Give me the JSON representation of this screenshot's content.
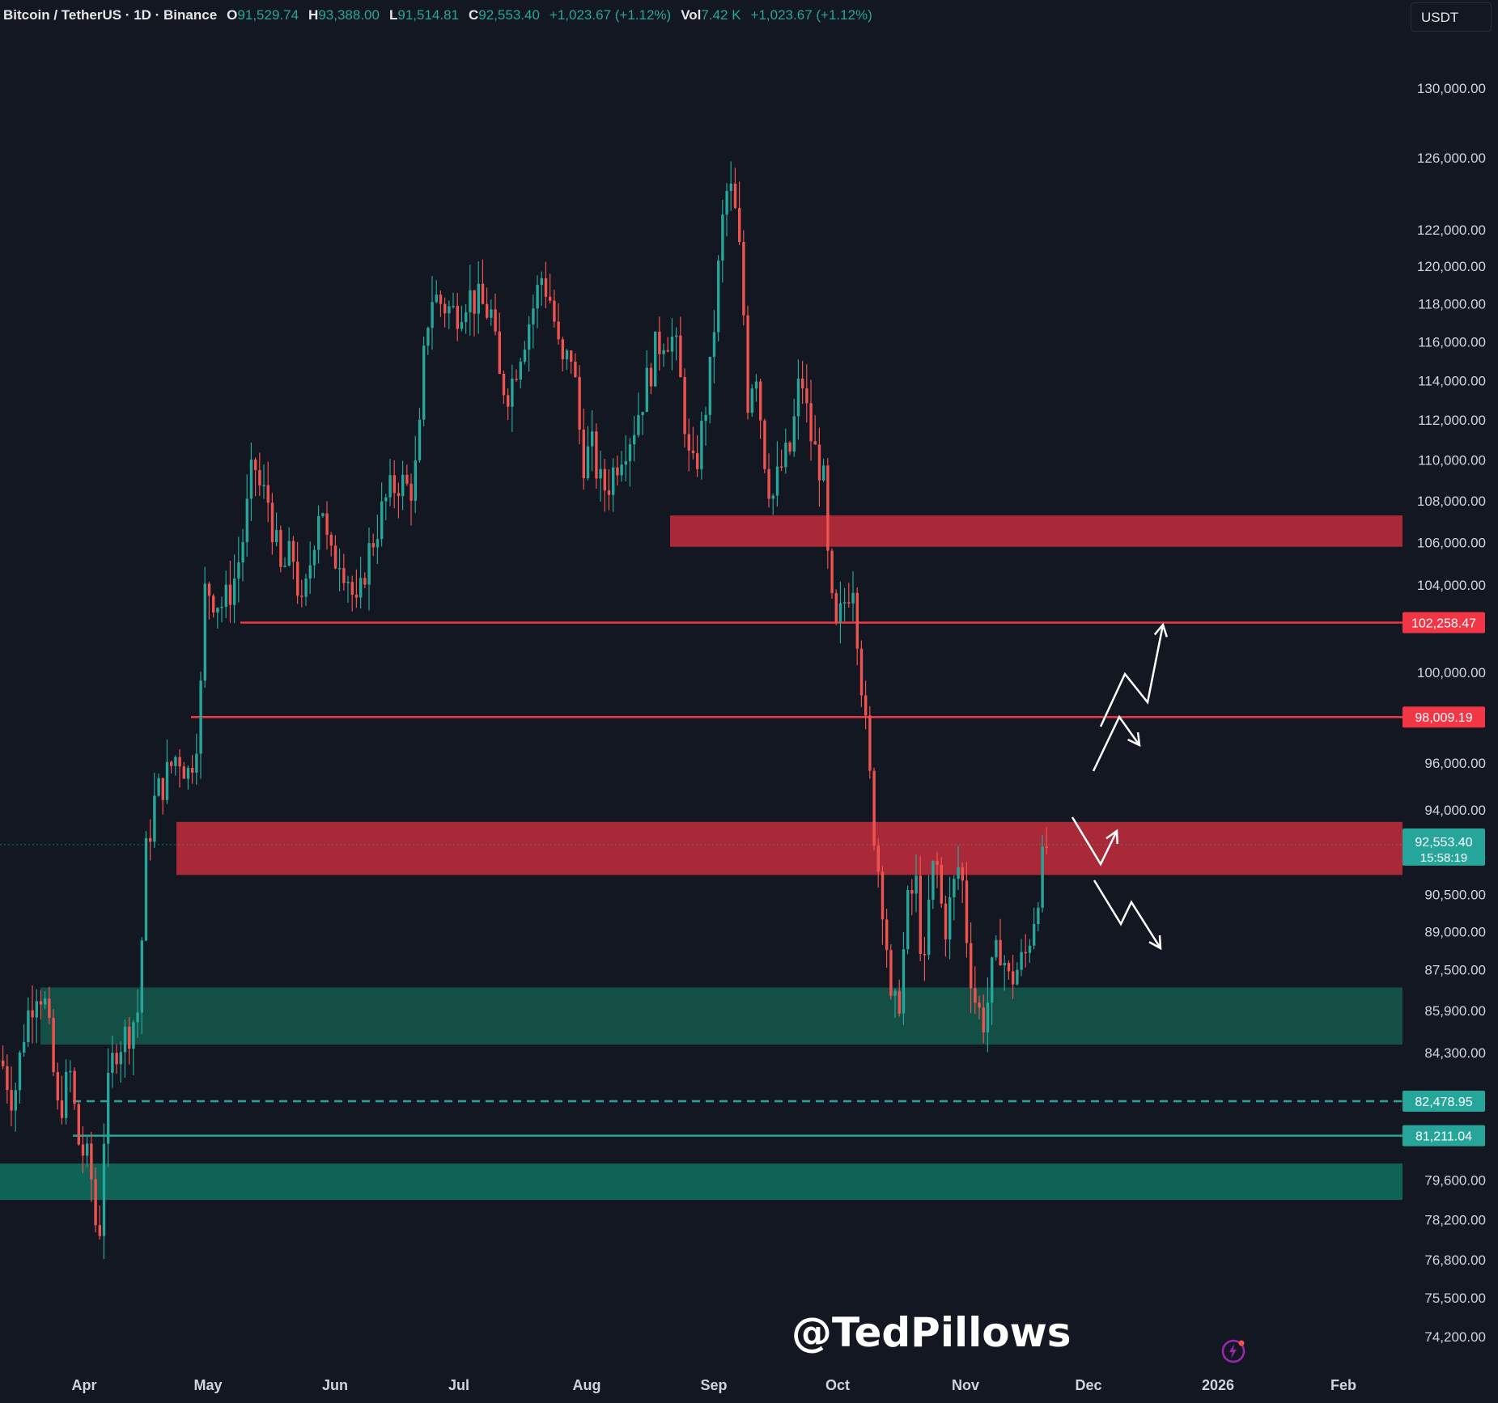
{
  "header": {
    "symbol": "Bitcoin / TetherUS · 1D · Binance",
    "open_label": "O",
    "open": "91,529.74",
    "high_label": "H",
    "high": "93,388.00",
    "low_label": "L",
    "low": "91,514.81",
    "close_label": "C",
    "close": "92,553.40",
    "change": "+1,023.67 (+1.12%)",
    "vol_label": "Vol",
    "vol": "7.42 K",
    "vol_change": "+1,023.67 (+1.12%)"
  },
  "currency_button": "USDT",
  "watermark": "@TedPillows",
  "colors": {
    "background": "#131722",
    "up": "#26a69a",
    "down": "#ef5350",
    "resistance_zone": "#b22a3a",
    "support_zone": "#145548",
    "support_zone_low": "#0f6b5c",
    "annotation": "#ffffff"
  },
  "chart_data": {
    "type": "candlestick",
    "x_labels": [
      "Apr",
      "May",
      "Jun",
      "Jul",
      "Aug",
      "Sep",
      "Oct",
      "Nov",
      "Dec",
      "2026",
      "Feb"
    ],
    "y_ticks": [
      "130,000.00",
      "126,000.00",
      "122,000.00",
      "120,000.00",
      "118,000.00",
      "116,000.00",
      "114,000.00",
      "112,000.00",
      "110,000.00",
      "108,000.00",
      "106,000.00",
      "104,000.00",
      "100,000.00",
      "96,000.00",
      "94,000.00",
      "90,500.00",
      "89,000.00",
      "87,500.00",
      "85,900.00",
      "84,300.00",
      "79,600.00",
      "78,200.00",
      "76,800.00",
      "75,500.00",
      "74,200.00"
    ],
    "y_tick_values": [
      130000,
      126000,
      122000,
      120000,
      118000,
      116000,
      114000,
      112000,
      110000,
      108000,
      106000,
      104000,
      100000,
      96000,
      94000,
      90500,
      89000,
      87500,
      85900,
      84300,
      79600,
      78200,
      76800,
      75500,
      74200
    ],
    "y_scale": "log",
    "price_anchors": [
      {
        "price": "102,258.47",
        "value": 102258.47,
        "style": "resistance"
      },
      {
        "price": "98,009.19",
        "value": 98009.19,
        "style": "resistance"
      },
      {
        "price": "82,478.95",
        "value": 82478.95,
        "style": "support_dashed"
      },
      {
        "price": "81,211.04",
        "value": 81211.04,
        "style": "support"
      }
    ],
    "current_price": {
      "price": "92,553.40",
      "countdown": "15:58:19",
      "value": 92553.4
    },
    "zones": [
      {
        "kind": "resistance",
        "low": 105800,
        "high": 107300,
        "from": "Aug",
        "to": "right_edge"
      },
      {
        "kind": "resistance",
        "low": 91300,
        "high": 93500,
        "from": "Apr",
        "to": "right_edge"
      },
      {
        "kind": "support",
        "low": 84600,
        "high": 86800,
        "from": "Mar",
        "to": "right_edge"
      },
      {
        "kind": "support",
        "low": 78900,
        "high": 80200,
        "from": "Mar",
        "to": "right_edge"
      }
    ],
    "horizontal_lines": [
      {
        "value": 102258.47,
        "from": "May",
        "style": "solid_red"
      },
      {
        "value": 98009.19,
        "from": "Apr",
        "style": "solid_red"
      },
      {
        "value": 82478.95,
        "from": "Mar",
        "style": "dashed_green"
      },
      {
        "value": 81211.04,
        "from": "Mar",
        "style": "solid_green"
      }
    ],
    "closes_path": [
      [
        0,
        84000
      ],
      [
        15,
        82500
      ],
      [
        30,
        85500
      ],
      [
        45,
        87000
      ],
      [
        55,
        86000
      ],
      [
        70,
        82000
      ],
      [
        85,
        83500
      ],
      [
        95,
        81000
      ],
      [
        110,
        80000
      ],
      [
        120,
        77000
      ],
      [
        128,
        82000
      ],
      [
        140,
        84500
      ],
      [
        155,
        85000
      ],
      [
        170,
        86000
      ],
      [
        178,
        92000
      ],
      [
        190,
        94500
      ],
      [
        205,
        95500
      ],
      [
        218,
        96500
      ],
      [
        232,
        95500
      ],
      [
        245,
        98000
      ],
      [
        252,
        104000
      ],
      [
        262,
        103500
      ],
      [
        275,
        103000
      ],
      [
        290,
        104500
      ],
      [
        300,
        106500
      ],
      [
        312,
        110000
      ],
      [
        320,
        108500
      ],
      [
        330,
        108000
      ],
      [
        345,
        104500
      ],
      [
        360,
        105500
      ],
      [
        372,
        102500
      ],
      [
        385,
        106000
      ],
      [
        395,
        108500
      ],
      [
        405,
        105000
      ],
      [
        418,
        105500
      ],
      [
        428,
        104500
      ],
      [
        440,
        102500
      ],
      [
        450,
        105000
      ],
      [
        462,
        106500
      ],
      [
        475,
        108000
      ],
      [
        490,
        109000
      ],
      [
        505,
        108500
      ],
      [
        515,
        110000
      ],
      [
        522,
        115000
      ],
      [
        530,
        118500
      ],
      [
        545,
        118000
      ],
      [
        560,
        117500
      ],
      [
        575,
        118500
      ],
      [
        590,
        118000
      ],
      [
        605,
        117500
      ],
      [
        615,
        114000
      ],
      [
        628,
        113500
      ],
      [
        640,
        115500
      ],
      [
        655,
        117500
      ],
      [
        668,
        119500
      ],
      [
        680,
        118000
      ],
      [
        692,
        114500
      ],
      [
        705,
        115500
      ],
      [
        718,
        110000
      ],
      [
        730,
        110500
      ],
      [
        742,
        108500
      ],
      [
        752,
        109000
      ],
      [
        765,
        110500
      ],
      [
        780,
        111500
      ],
      [
        795,
        113500
      ],
      [
        808,
        115500
      ],
      [
        820,
        116500
      ],
      [
        832,
        116000
      ],
      [
        842,
        113000
      ],
      [
        852,
        109000
      ],
      [
        862,
        110500
      ],
      [
        875,
        114000
      ],
      [
        882,
        117500
      ],
      [
        890,
        122000
      ],
      [
        898,
        124500
      ],
      [
        905,
        123500
      ],
      [
        915,
        119500
      ],
      [
        922,
        113000
      ],
      [
        932,
        115000
      ],
      [
        942,
        110500
      ],
      [
        952,
        108000
      ],
      [
        962,
        109500
      ],
      [
        975,
        110500
      ],
      [
        988,
        114500
      ],
      [
        998,
        111500
      ],
      [
        1008,
        110000
      ],
      [
        1015,
        109500
      ],
      [
        1022,
        104500
      ],
      [
        1030,
        101500
      ],
      [
        1040,
        103000
      ],
      [
        1052,
        104500
      ],
      [
        1062,
        100000
      ],
      [
        1070,
        96500
      ],
      [
        1080,
        92500
      ],
      [
        1092,
        89500
      ],
      [
        1100,
        85500
      ],
      [
        1110,
        86500
      ],
      [
        1120,
        90000
      ],
      [
        1130,
        91000
      ],
      [
        1140,
        87000
      ],
      [
        1148,
        91000
      ],
      [
        1155,
        92000
      ],
      [
        1165,
        89000
      ],
      [
        1175,
        90500
      ],
      [
        1185,
        92000
      ],
      [
        1195,
        88000
      ],
      [
        1205,
        86000
      ],
      [
        1215,
        85500
      ],
      [
        1225,
        87500
      ],
      [
        1235,
        88500
      ],
      [
        1245,
        87000
      ],
      [
        1255,
        87500
      ],
      [
        1265,
        88000
      ],
      [
        1275,
        89500
      ],
      [
        1285,
        91500
      ],
      [
        1292,
        92553
      ]
    ],
    "projection_arrows": [
      {
        "label": "bull_path_high",
        "points": [
          [
            1360,
            898
          ],
          [
            1390,
            833
          ],
          [
            1418,
            868
          ],
          [
            1437,
            772
          ]
        ]
      },
      {
        "label": "bull_path_mid",
        "points": [
          [
            1351,
            953
          ],
          [
            1383,
            886
          ],
          [
            1408,
            921
          ]
        ]
      },
      {
        "label": "bounce_path",
        "points": [
          [
            1325,
            1010
          ],
          [
            1360,
            1068
          ],
          [
            1380,
            1027
          ]
        ]
      },
      {
        "label": "bear_path",
        "points": [
          [
            1352,
            1088
          ],
          [
            1385,
            1142
          ],
          [
            1398,
            1115
          ],
          [
            1434,
            1172
          ]
        ]
      }
    ]
  }
}
